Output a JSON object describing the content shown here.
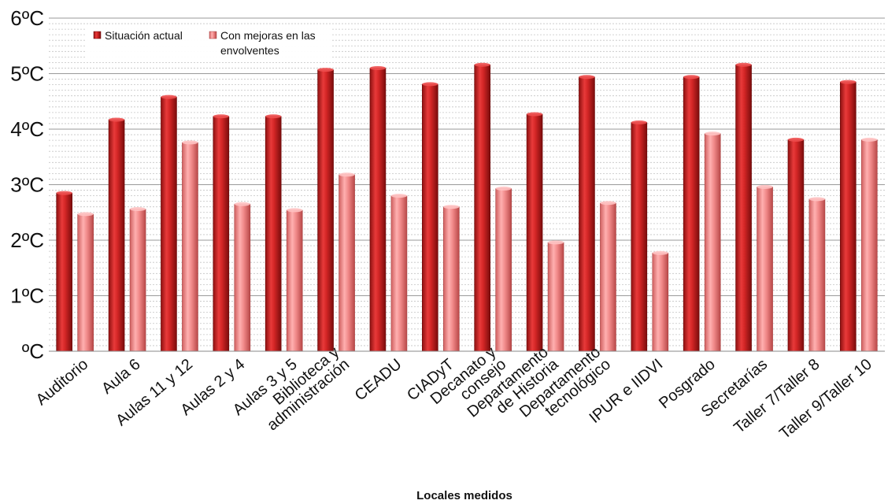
{
  "chart_data": {
    "type": "bar",
    "title": "",
    "xlabel": "Locales medidos",
    "ylabel": "",
    "ylim": [
      0,
      6
    ],
    "yticks": [
      0,
      1,
      2,
      3,
      4,
      5,
      6
    ],
    "ytick_labels": [
      "ºC",
      "1ºC",
      "2ºC",
      "3ºC",
      "4ºC",
      "5ºC",
      "6ºC"
    ],
    "grid": true,
    "legend_position": "top-left",
    "categories": [
      [
        "Auditorio"
      ],
      [
        "Aula 6"
      ],
      [
        "Aulas 11 y 12"
      ],
      [
        "Aulas 2 y 4"
      ],
      [
        "Aulas 3 y 5"
      ],
      [
        "Biblioteca y",
        "administración"
      ],
      [
        "CEADU"
      ],
      [
        "CIADyT"
      ],
      [
        "Decanato y",
        "consejo"
      ],
      [
        "Departamento",
        "de Historia"
      ],
      [
        "Departamento",
        "tecnológico"
      ],
      [
        "IPUR e IIDVI"
      ],
      [
        "Posgrado"
      ],
      [
        "Secretarías"
      ],
      [
        "Taller 7/Taller 8"
      ],
      [
        "Taller 9/Taller 10"
      ]
    ],
    "series": [
      {
        "name": "Situación actual",
        "color": "#c81e1e",
        "values": [
          2.85,
          4.17,
          4.58,
          4.23,
          4.23,
          5.07,
          5.1,
          4.81,
          5.16,
          4.27,
          4.94,
          4.12,
          4.94,
          5.16,
          3.81,
          4.85
        ]
      },
      {
        "name": "Con mejoras en las envolventes",
        "color": "#f08c8c",
        "values": [
          2.47,
          2.56,
          3.76,
          2.65,
          2.54,
          3.18,
          2.8,
          2.6,
          2.93,
          1.96,
          2.67,
          1.77,
          3.92,
          2.96,
          2.74,
          3.81
        ]
      }
    ],
    "legend_lines": [
      [
        "Situación actual"
      ],
      [
        "Con mejoras en las",
        "envolventes"
      ]
    ]
  }
}
